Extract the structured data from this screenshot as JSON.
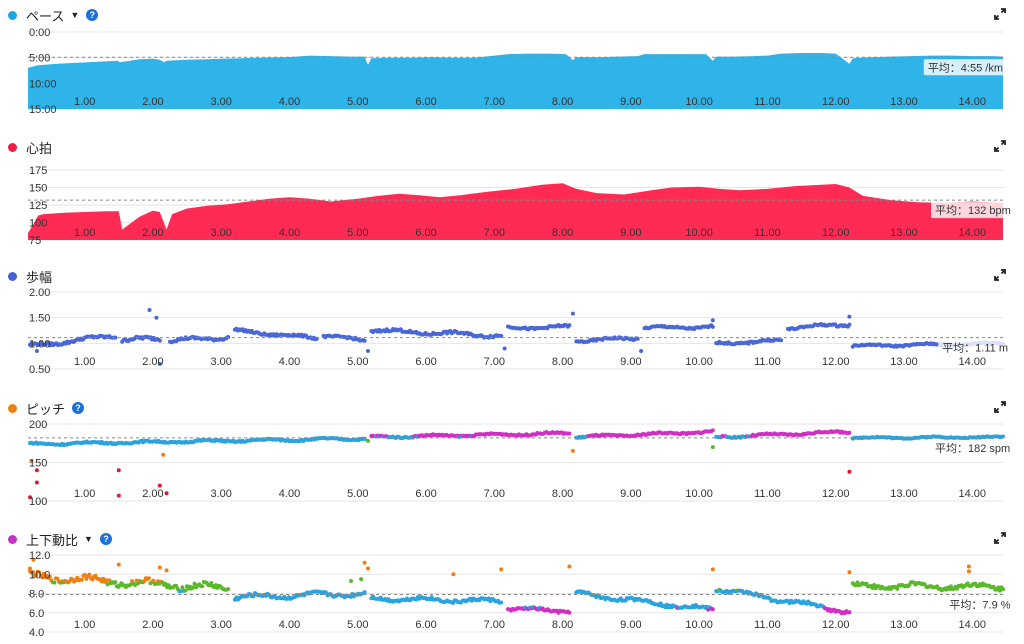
{
  "chart_data": [
    {
      "type": "area",
      "title": "ペース",
      "color": "#2fb4ea",
      "dot_color": "#1aa6e4",
      "has_dropdown": true,
      "has_help": true,
      "ylim": [
        15,
        0
      ],
      "y_ticks": [
        "0:00",
        "5:00",
        "10:00",
        "15:00"
      ],
      "y_tick_values": [
        0,
        5,
        10,
        15
      ],
      "x_ticks": [
        "1.00",
        "2.00",
        "3.00",
        "4.00",
        "5.00",
        "6.00",
        "7.00",
        "8.00",
        "9.00",
        "10.00",
        "11.00",
        "12.00",
        "13.00",
        "14.00"
      ],
      "xlim": [
        0.17,
        14.45
      ],
      "average_value": 4.92,
      "average_label": "平均：4:55 /km",
      "x": [
        0.17,
        0.3,
        0.6,
        0.9,
        1.2,
        1.48,
        1.52,
        1.8,
        2.0,
        2.1,
        2.16,
        2.2,
        2.5,
        2.8,
        3.0,
        3.3,
        3.6,
        3.9,
        4.1,
        4.3,
        4.6,
        4.9,
        5.1,
        5.15,
        5.2,
        5.5,
        5.8,
        6.1,
        6.4,
        6.7,
        7.0,
        7.2,
        7.5,
        7.8,
        8.05,
        8.15,
        8.2,
        8.5,
        8.8,
        9.1,
        9.2,
        9.5,
        9.8,
        10.1,
        10.2,
        10.25,
        10.5,
        10.8,
        11.0,
        11.2,
        11.5,
        11.8,
        12.0,
        12.2,
        12.25,
        12.5,
        12.8,
        13.1,
        13.4,
        13.7,
        14.0,
        14.3,
        14.45
      ],
      "y": [
        7.0,
        6.5,
        6.2,
        6.0,
        5.8,
        5.6,
        5.9,
        5.3,
        5.2,
        5.4,
        5.9,
        5.6,
        5.4,
        5.3,
        5.2,
        5.1,
        5.0,
        4.9,
        4.8,
        4.6,
        4.7,
        4.8,
        4.8,
        6.4,
        5.1,
        5.0,
        5.0,
        4.9,
        5.0,
        5.0,
        4.6,
        4.3,
        4.2,
        4.2,
        4.3,
        5.5,
        4.9,
        4.9,
        4.8,
        4.7,
        4.3,
        4.3,
        4.3,
        4.3,
        5.6,
        4.8,
        4.8,
        4.7,
        4.6,
        4.2,
        4.1,
        4.1,
        4.2,
        6.2,
        5.1,
        4.9,
        4.8,
        4.7,
        4.6,
        4.6,
        4.7,
        4.7,
        4.8
      ]
    },
    {
      "type": "area",
      "title": "心拍",
      "color": "#ff2b54",
      "dot_color": "#ee1e46",
      "has_dropdown": false,
      "has_help": false,
      "ylim": [
        75,
        185
      ],
      "y_ticks": [
        "75",
        "100",
        "125",
        "150",
        "175"
      ],
      "y_tick_values": [
        75,
        100,
        125,
        150,
        175
      ],
      "x_ticks": [
        "1.00",
        "2.00",
        "3.00",
        "4.00",
        "5.00",
        "6.00",
        "7.00",
        "8.00",
        "9.00",
        "10.00",
        "11.00",
        "12.00",
        "13.00",
        "14.00"
      ],
      "xlim": [
        0.17,
        14.45
      ],
      "average_value": 132,
      "average_label": "平均：132 bpm",
      "x": [
        0.17,
        0.25,
        0.32,
        0.4,
        0.7,
        1.0,
        1.3,
        1.5,
        1.55,
        1.8,
        2.0,
        2.1,
        2.2,
        2.28,
        2.5,
        2.8,
        3.1,
        3.4,
        3.7,
        4.0,
        4.3,
        4.6,
        5.0,
        5.3,
        5.6,
        5.9,
        6.2,
        6.5,
        6.9,
        7.3,
        7.7,
        8.0,
        8.2,
        8.5,
        8.9,
        9.3,
        9.6,
        10.0,
        10.3,
        10.6,
        11.0,
        11.4,
        11.8,
        12.0,
        12.2,
        12.4,
        12.8,
        13.2,
        13.6,
        14.0,
        14.45
      ],
      "y": [
        85,
        98,
        110,
        112,
        114,
        115,
        116,
        116,
        90,
        108,
        117,
        115,
        90,
        112,
        120,
        124,
        126,
        130,
        134,
        136,
        134,
        130,
        134,
        138,
        141,
        139,
        136,
        139,
        144,
        148,
        154,
        156,
        148,
        142,
        140,
        146,
        150,
        151,
        148,
        146,
        148,
        152,
        154,
        155,
        150,
        138,
        132,
        129,
        128,
        130,
        128
      ]
    },
    {
      "type": "scatter",
      "title": "歩幅",
      "color": "#4a67d6",
      "dot_color": "#4262d6",
      "has_dropdown": false,
      "has_help": false,
      "ylim": [
        0.5,
        2.0
      ],
      "y_ticks": [
        "0.50",
        "1.00",
        "1.50",
        "2.00"
      ],
      "y_tick_values": [
        0.5,
        1.0,
        1.5,
        2.0
      ],
      "x_ticks": [
        "1.00",
        "2.00",
        "3.00",
        "4.00",
        "5.00",
        "6.00",
        "7.00",
        "8.00",
        "9.00",
        "10.00",
        "11.00",
        "12.00",
        "13.00",
        "14.00"
      ],
      "xlim": [
        0.17,
        14.45
      ],
      "average_value": 1.11,
      "average_label": "平均：1.11 m",
      "segments": [
        {
          "x0": 0.2,
          "x1": 1.45,
          "y0": 0.95,
          "y1": 1.15,
          "amp": 0.05
        },
        {
          "x0": 1.55,
          "x1": 2.1,
          "y0": 1.05,
          "y1": 1.1,
          "amp": 0.06
        },
        {
          "x0": 2.25,
          "x1": 3.1,
          "y0": 1.05,
          "y1": 1.12,
          "amp": 0.05
        },
        {
          "x0": 3.2,
          "x1": 4.4,
          "y0": 1.25,
          "y1": 1.1,
          "amp": 0.04
        },
        {
          "x0": 4.5,
          "x1": 5.1,
          "y0": 1.15,
          "y1": 1.05,
          "amp": 0.04
        },
        {
          "x0": 5.2,
          "x1": 7.1,
          "y0": 1.25,
          "y1": 1.15,
          "amp": 0.05
        },
        {
          "x0": 7.2,
          "x1": 8.1,
          "y0": 1.3,
          "y1": 1.32,
          "amp": 0.04
        },
        {
          "x0": 8.2,
          "x1": 9.1,
          "y0": 1.05,
          "y1": 1.1,
          "amp": 0.04
        },
        {
          "x0": 9.2,
          "x1": 10.2,
          "y0": 1.3,
          "y1": 1.32,
          "amp": 0.04
        },
        {
          "x0": 10.25,
          "x1": 11.2,
          "y0": 1.0,
          "y1": 1.05,
          "amp": 0.04
        },
        {
          "x0": 11.3,
          "x1": 12.2,
          "y0": 1.3,
          "y1": 1.37,
          "amp": 0.04
        },
        {
          "x0": 12.25,
          "x1": 14.45,
          "y0": 0.95,
          "y1": 1.0,
          "amp": 0.03
        }
      ],
      "outliers": [
        [
          1.95,
          1.65
        ],
        [
          2.05,
          1.5
        ],
        [
          2.1,
          0.6
        ],
        [
          5.15,
          0.85
        ],
        [
          8.15,
          1.58
        ],
        [
          9.15,
          0.85
        ],
        [
          10.2,
          1.45
        ],
        [
          12.2,
          1.52
        ],
        [
          0.3,
          0.85
        ],
        [
          7.15,
          0.9
        ]
      ]
    },
    {
      "type": "scatter",
      "title": "ピッチ",
      "color": "#f07f13",
      "dot_color": "#f07f13",
      "has_dropdown": false,
      "has_help": true,
      "ylim": [
        100,
        200
      ],
      "y_ticks": [
        "100",
        "150",
        "200"
      ],
      "y_tick_values": [
        100,
        150,
        200
      ],
      "x_ticks": [
        "1.00",
        "2.00",
        "3.00",
        "4.00",
        "5.00",
        "6.00",
        "7.00",
        "8.00",
        "9.00",
        "10.00",
        "11.00",
        "12.00",
        "13.00",
        "14.00"
      ],
      "xlim": [
        0.17,
        14.45
      ],
      "average_value": 182,
      "average_label": "平均：182 spm",
      "zone_colors": [
        "#2aa3de",
        "#d02fc4",
        "#5bb82c",
        "#e0163b",
        "#f07f13"
      ],
      "segments": [
        {
          "x0": 0.2,
          "x1": 5.1,
          "y0": 174,
          "y1": 181,
          "amp": 2.0
        },
        {
          "x0": 5.2,
          "x1": 8.1,
          "y0": 183,
          "y1": 188,
          "amp": 2.0
        },
        {
          "x0": 8.2,
          "x1": 10.2,
          "y0": 183,
          "y1": 190,
          "amp": 2.0
        },
        {
          "x0": 10.25,
          "x1": 12.2,
          "y0": 183,
          "y1": 190,
          "amp": 2.0
        },
        {
          "x0": 12.25,
          "x1": 14.45,
          "y0": 182,
          "y1": 183,
          "amp": 1.5
        }
      ],
      "outliers": [
        [
          0.2,
          105
        ],
        [
          0.3,
          140
        ],
        [
          0.3,
          124
        ],
        [
          1.5,
          140
        ],
        [
          1.5,
          107
        ],
        [
          2.1,
          120
        ],
        [
          2.2,
          110
        ],
        [
          2.15,
          160
        ],
        [
          0.22,
          152
        ],
        [
          12.2,
          138
        ],
        [
          8.15,
          165
        ],
        [
          10.2,
          170
        ],
        [
          5.15,
          178
        ]
      ]
    },
    {
      "type": "scatter",
      "title": "上下動比",
      "color": "#c632c6",
      "dot_color": "#c632c6",
      "has_dropdown": true,
      "has_help": true,
      "ylim": [
        4,
        12
      ],
      "y_ticks": [
        "4.0",
        "6.0",
        "8.0",
        "10.0",
        "12.0"
      ],
      "y_tick_values": [
        4,
        6,
        8,
        10,
        12
      ],
      "x_ticks": [
        "1.00",
        "2.00",
        "3.00",
        "4.00",
        "5.00",
        "6.00",
        "7.00",
        "8.00",
        "9.00",
        "10.00",
        "11.00",
        "12.00",
        "13.00",
        "14.00"
      ],
      "xlim": [
        0.17,
        14.45
      ],
      "average_value": 7.9,
      "average_label": "平均：7.9 %",
      "zone_colors": [
        "#2aa3de",
        "#d02fc4",
        "#5bb82c",
        "#f07f13"
      ],
      "segments": [
        {
          "x0": 0.2,
          "x1": 3.1,
          "y0": 9.8,
          "y1": 8.5,
          "amp": 0.55
        },
        {
          "x0": 3.2,
          "x1": 5.1,
          "y0": 7.6,
          "y1": 8.0,
          "amp": 0.35
        },
        {
          "x0": 5.2,
          "x1": 7.1,
          "y0": 7.5,
          "y1": 7.2,
          "amp": 0.3
        },
        {
          "x0": 7.2,
          "x1": 8.1,
          "y0": 6.4,
          "y1": 6.2,
          "amp": 0.25
        },
        {
          "x0": 8.2,
          "x1": 10.2,
          "y0": 8.0,
          "y1": 6.3,
          "amp": 0.3
        },
        {
          "x0": 10.25,
          "x1": 12.2,
          "y0": 8.5,
          "y1": 6.1,
          "amp": 0.3
        },
        {
          "x0": 12.25,
          "x1": 14.45,
          "y0": 8.8,
          "y1": 8.7,
          "amp": 0.4
        }
      ],
      "outliers": [
        [
          0.25,
          11.5
        ],
        [
          0.2,
          10.6
        ],
        [
          1.5,
          11.0
        ],
        [
          2.1,
          10.7
        ],
        [
          2.2,
          10.4
        ],
        [
          5.1,
          11.2
        ],
        [
          5.15,
          10.6
        ],
        [
          5.05,
          9.5
        ],
        [
          6.4,
          10.0
        ],
        [
          7.1,
          10.5
        ],
        [
          8.1,
          10.8
        ],
        [
          10.2,
          10.5
        ],
        [
          12.2,
          10.2
        ],
        [
          13.95,
          10.8
        ],
        [
          13.95,
          10.3
        ],
        [
          4.9,
          9.3
        ]
      ]
    }
  ]
}
